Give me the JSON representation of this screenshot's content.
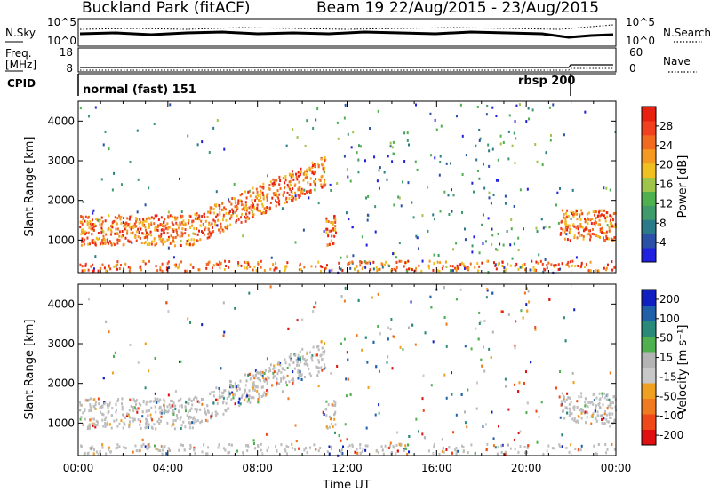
{
  "header": {
    "station": "Buckland Park (fitACF)",
    "beam": "Beam 19",
    "date_range": "22/Aug/2015 - 23/Aug/2015"
  },
  "noise_panel": {
    "label": "N.Sky",
    "right_label": "N.Search",
    "left_ticks": [
      "10^5",
      "10^0"
    ],
    "right_ticks": [
      "10^5",
      "10^0"
    ]
  },
  "freq_panel": {
    "label_line1": "Freq.",
    "label_line2": "[MHz]",
    "left_ticks": [
      "18",
      "8"
    ],
    "right_label": "Nave",
    "right_ticks": [
      "60",
      "0"
    ]
  },
  "cpid_panel": {
    "label": "CPID",
    "segments": [
      {
        "text": "normal (fast) 151",
        "start_hour": 0
      },
      {
        "text": "rbsp 200",
        "start_hour": 21.8
      }
    ]
  },
  "chart_data": [
    {
      "type": "heatmap",
      "name": "power",
      "ylabel": "Slant Range [km]",
      "xlabel": "",
      "ylim": [
        180,
        4500
      ],
      "yticks": [
        "1000",
        "2000",
        "3000",
        "4000"
      ],
      "colorbar": {
        "label": "Power [dB]",
        "ticks": [
          "4",
          "8",
          "12",
          "16",
          "20",
          "24",
          "28"
        ],
        "colors": [
          "#2020e0",
          "#2a50a8",
          "#2a7a8a",
          "#3f9a6c",
          "#4fb04f",
          "#9ec44a",
          "#f0c020",
          "#f59a20",
          "#f06a20",
          "#f04020",
          "#e82010"
        ]
      }
    },
    {
      "type": "heatmap",
      "name": "velocity",
      "ylabel": "Slant Range [km]",
      "xlabel": "Time UT",
      "ylim": [
        180,
        4500
      ],
      "yticks": [
        "1000",
        "2000",
        "3000",
        "4000"
      ],
      "xticks": [
        "00:00",
        "04:00",
        "08:00",
        "12:00",
        "16:00",
        "20:00",
        "00:00"
      ],
      "colorbar": {
        "label": "Velocity [m s⁻¹]",
        "ticks": [
          "200",
          "100",
          "50",
          "15",
          "-15",
          "-50",
          "-100",
          "-200"
        ],
        "colors": [
          "#1020c0",
          "#2060a8",
          "#2a8a7a",
          "#4fb04f",
          "#b4b4b4",
          "#c8c8c8",
          "#f0a020",
          "#f07a20",
          "#f04818",
          "#e01010"
        ]
      }
    }
  ]
}
